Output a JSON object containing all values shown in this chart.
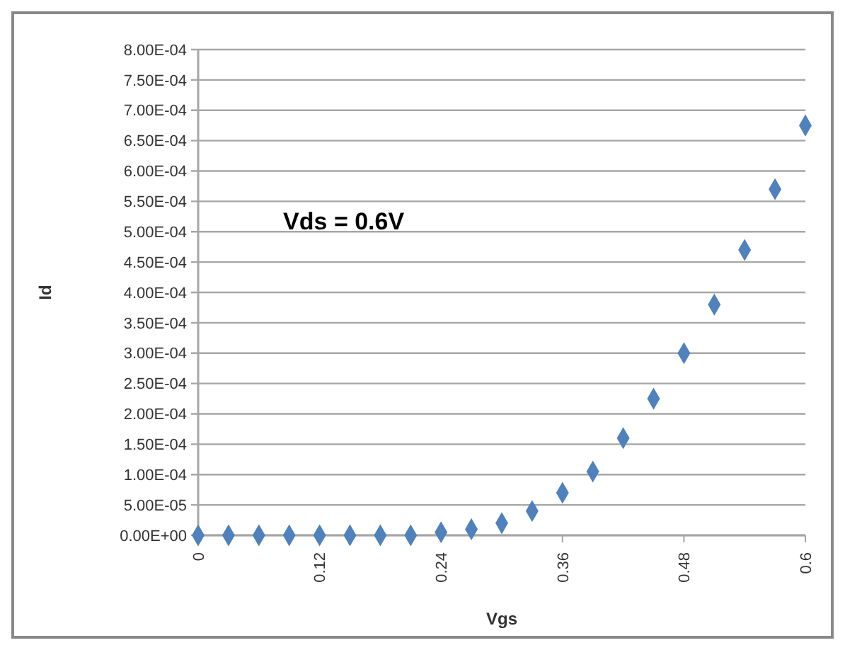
{
  "chart_data": {
    "type": "scatter",
    "xlabel": "Vgs",
    "ylabel": "Id",
    "annotations": [
      "Vds = 0.6V"
    ],
    "x": [
      0,
      0.03,
      0.06,
      0.09,
      0.12,
      0.15,
      0.18,
      0.21,
      0.24,
      0.27,
      0.3,
      0.33,
      0.36,
      0.39,
      0.42,
      0.45,
      0.48,
      0.51,
      0.54,
      0.57,
      0.6
    ],
    "series": [
      {
        "color": "#4f81bd",
        "values": [
          0,
          0,
          0,
          0,
          0,
          0,
          0,
          0,
          5e-06,
          1e-05,
          2e-05,
          4e-05,
          7e-05,
          0.000105,
          0.00016,
          0.000225,
          0.0003,
          0.00038,
          0.00047,
          0.00057,
          0.000675
        ]
      }
    ],
    "xlim": [
      0,
      0.6
    ],
    "xticks": [
      0,
      0.12,
      0.24,
      0.36,
      0.48,
      0.6
    ],
    "ylim": [
      0,
      0.0008
    ],
    "yticks": [
      {
        "value": 0,
        "label": "0.00E+00"
      },
      {
        "value": 5e-05,
        "label": "5.00E-05"
      },
      {
        "value": 0.0001,
        "label": "1.00E-04"
      },
      {
        "value": 0.00015,
        "label": "1.50E-04"
      },
      {
        "value": 0.0002,
        "label": "2.00E-04"
      },
      {
        "value": 0.00025,
        "label": "2.50E-04"
      },
      {
        "value": 0.0003,
        "label": "3.00E-04"
      },
      {
        "value": 0.00035,
        "label": "3.50E-04"
      },
      {
        "value": 0.0004,
        "label": "4.00E-04"
      },
      {
        "value": 0.00045,
        "label": "4.50E-04"
      },
      {
        "value": 0.0005,
        "label": "5.00E-04"
      },
      {
        "value": 0.00055,
        "label": "5.50E-04"
      },
      {
        "value": 0.0006,
        "label": "6.00E-04"
      },
      {
        "value": 0.00065,
        "label": "6.50E-04"
      },
      {
        "value": 0.0007,
        "label": "7.00E-04"
      },
      {
        "value": 0.00075,
        "label": "7.50E-04"
      },
      {
        "value": 0.0008,
        "label": "8.00E-04"
      }
    ],
    "grid": "y",
    "marker": "diamond"
  }
}
